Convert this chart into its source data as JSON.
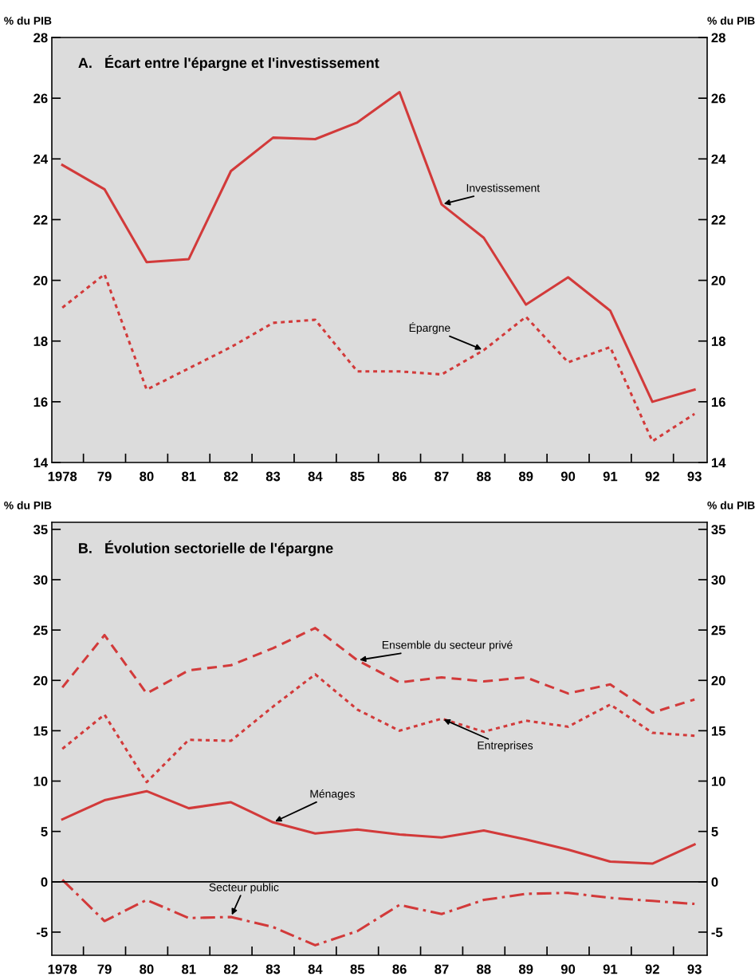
{
  "chart_data": [
    {
      "type": "line",
      "title": "A.   Écart entre l'épargne et l'investissement",
      "ylabel": "% du PIB",
      "y2label": "% du PIB",
      "categories": [
        "1978",
        "79",
        "80",
        "81",
        "82",
        "83",
        "84",
        "85",
        "86",
        "87",
        "88",
        "89",
        "90",
        "91",
        "92",
        "93"
      ],
      "series": [
        {
          "name": "Investissement",
          "color": "#d23a3a",
          "line_style": "solid",
          "values": [
            23.8,
            23.0,
            20.6,
            20.7,
            23.6,
            24.7,
            24.65,
            25.2,
            26.2,
            22.5,
            21.4,
            19.2,
            20.1,
            19.0,
            16.0,
            16.4
          ]
        },
        {
          "name": "Épargne",
          "color": "#d23a3a",
          "line_style": "dotted",
          "values": [
            19.1,
            20.2,
            16.4,
            17.1,
            17.8,
            18.6,
            18.7,
            17.0,
            17.0,
            16.9,
            17.7,
            18.8,
            17.3,
            17.8,
            14.7,
            15.6
          ]
        }
      ],
      "ylim": [
        14,
        28
      ],
      "yticks": [
        14,
        16,
        18,
        20,
        22,
        24,
        26,
        28
      ],
      "y2lim": [
        14,
        28
      ],
      "y2ticks": [
        14,
        16,
        18,
        20,
        22,
        24,
        26,
        28
      ],
      "grid": false,
      "legend": false
    },
    {
      "type": "line",
      "title": "B.   Évolution sectorielle de l'épargne",
      "ylabel": "% du PIB",
      "y2label": "% du PIB",
      "categories": [
        "1978",
        "79",
        "80",
        "81",
        "82",
        "83",
        "84",
        "85",
        "86",
        "87",
        "88",
        "89",
        "90",
        "91",
        "92",
        "93"
      ],
      "series": [
        {
          "name": "Ensemble du secteur privé",
          "color": "#d23a3a",
          "line_style": "dashed",
          "values": [
            19.3,
            24.5,
            18.7,
            21.0,
            21.5,
            23.2,
            25.2,
            22.0,
            19.8,
            20.3,
            19.9,
            20.3,
            18.7,
            19.6,
            16.8,
            18.1
          ]
        },
        {
          "name": "Entreprises",
          "color": "#d23a3a",
          "line_style": "dotted",
          "values": [
            13.2,
            16.6,
            9.9,
            14.1,
            14.0,
            17.4,
            20.6,
            17.1,
            15.0,
            16.2,
            14.9,
            16.0,
            15.4,
            17.6,
            14.8,
            14.5
          ]
        },
        {
          "name": "Ménages",
          "color": "#d23a3a",
          "line_style": "solid",
          "values": [
            6.2,
            8.1,
            9.0,
            7.3,
            7.9,
            5.9,
            4.8,
            5.2,
            4.7,
            4.4,
            5.1,
            4.2,
            3.2,
            2.0,
            1.8,
            3.7
          ]
        },
        {
          "name": "Secteur public",
          "color": "#d23a3a",
          "line_style": "dashdot",
          "values": [
            0.2,
            -3.9,
            -1.8,
            -3.6,
            -3.5,
            -4.5,
            -6.3,
            -4.9,
            -2.3,
            -3.2,
            -1.8,
            -1.2,
            -1.1,
            -1.6,
            -1.9,
            -2.2
          ]
        }
      ],
      "ref_lines": [
        {
          "axis": "y",
          "value": 0,
          "color": "#000000"
        }
      ],
      "ylim": [
        -7.3,
        35.7
      ],
      "yticks": [
        -5,
        0,
        5,
        10,
        15,
        20,
        25,
        30,
        35
      ],
      "y2lim": [
        -7.3,
        35.7
      ],
      "y2ticks": [
        -5,
        0,
        5,
        10,
        15,
        20,
        25,
        30,
        35
      ],
      "grid": false,
      "legend": false
    }
  ]
}
